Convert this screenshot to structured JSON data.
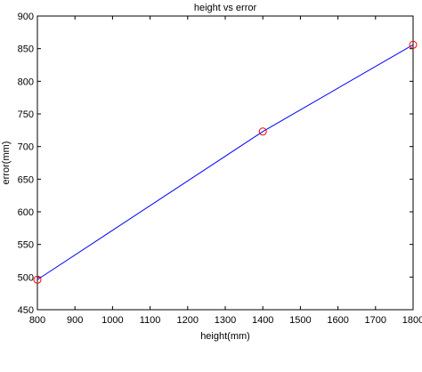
{
  "chart_data": {
    "type": "line",
    "title": "height vs error",
    "xlabel": "height(mm)",
    "ylabel": "error(mm)",
    "xlim": [
      800,
      1800
    ],
    "ylim": [
      450,
      900
    ],
    "xticks": [
      800,
      900,
      1000,
      1100,
      1200,
      1300,
      1400,
      1500,
      1600,
      1700,
      1800
    ],
    "xtick_labels": [
      "800",
      "900",
      "1000",
      "1100",
      "1200",
      "1300",
      "1400",
      "1500",
      "1600",
      "1700",
      "1800"
    ],
    "yticks": [
      450,
      500,
      550,
      600,
      650,
      700,
      750,
      800,
      850,
      900
    ],
    "ytick_labels": [
      "450",
      "500",
      "550",
      "600",
      "650",
      "700",
      "750",
      "800",
      "850",
      "900"
    ],
    "grid": false,
    "series": [
      {
        "kind": "line",
        "color": "#0000ff",
        "x": [
          800,
          1400,
          1800
        ],
        "y": [
          496,
          723,
          856
        ]
      },
      {
        "kind": "markers",
        "marker": "circle",
        "color": "#ff0000",
        "x": [
          800,
          1400,
          1800
        ],
        "y": [
          496,
          723,
          856
        ]
      }
    ]
  }
}
